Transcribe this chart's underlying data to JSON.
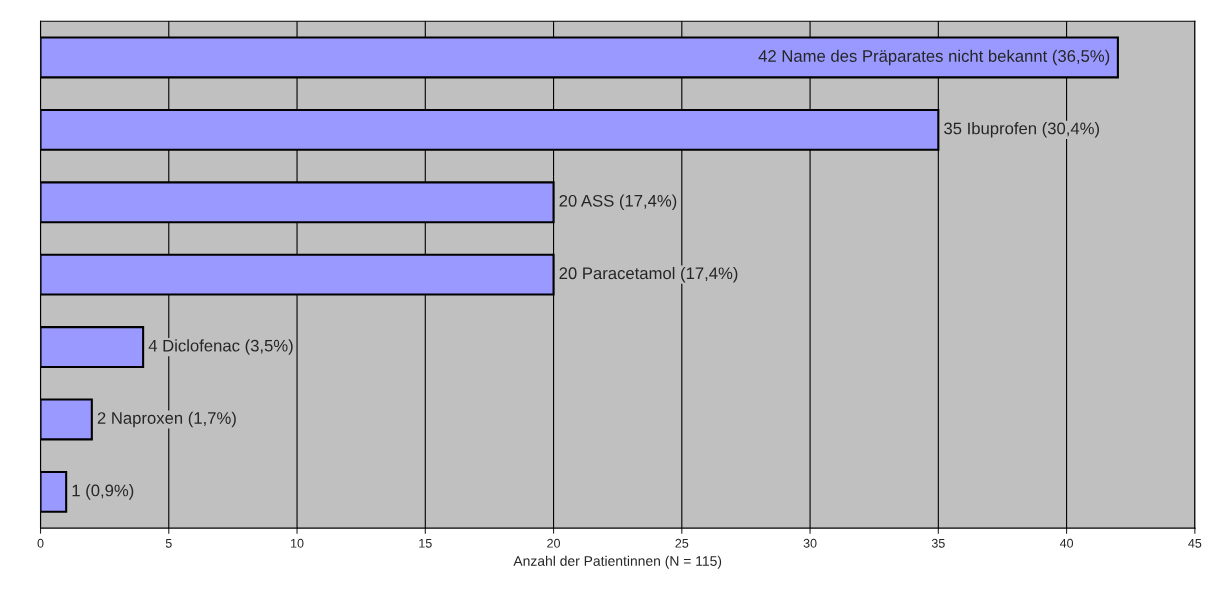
{
  "chart_data": {
    "type": "bar",
    "orientation": "horizontal",
    "xlabel": "Anzahl der Patientinnen (N = 115)",
    "categories": [
      null,
      null,
      null,
      null,
      null,
      null,
      null
    ],
    "values": [
      42,
      35,
      20,
      20,
      4,
      2,
      1
    ],
    "value_labels": [
      "42 Name des Präparates nicht bekannt (36,5%)",
      "35 Ibuprofen (30,4%)",
      "20 ASS (17,4%)",
      "20 Paracetamol (17,4%)",
      "4 Diclofenac (3,5%)",
      "2 Naproxen (1,7%)",
      "1 (0,9%)"
    ],
    "color": "#9999ff",
    "xlim": [
      0,
      45
    ],
    "xticks": [
      0,
      5,
      10,
      15,
      20,
      25,
      30,
      35,
      40,
      45
    ],
    "grid": "x",
    "legend": false
  }
}
